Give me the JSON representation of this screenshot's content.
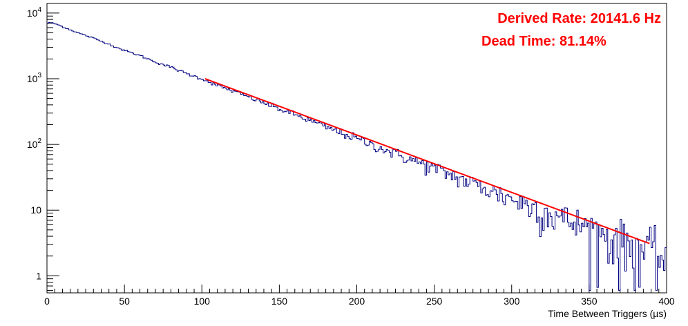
{
  "chart_data": {
    "type": "line",
    "title": "",
    "xlabel": "Time Between Triggers (µs)",
    "ylabel": "",
    "xlim": [
      0,
      400
    ],
    "ylim": [
      0.55,
      14000
    ],
    "y_scale": "log",
    "grid": false,
    "x_ticks": [
      0,
      50,
      100,
      150,
      200,
      250,
      300,
      350,
      400
    ],
    "x_tick_labels": [
      "0",
      "50",
      "100",
      "150",
      "200",
      "250",
      "300",
      "350",
      "400"
    ],
    "y_ticks": [
      {
        "value": 1,
        "base": "1",
        "exp": ""
      },
      {
        "value": 10,
        "base": "10",
        "exp": ""
      },
      {
        "value": 100,
        "base": "10",
        "exp": "2"
      },
      {
        "value": 1000,
        "base": "10",
        "exp": "3"
      },
      {
        "value": 10000,
        "base": "10",
        "exp": "4"
      }
    ],
    "histogram": {
      "name": "",
      "color": "#000080",
      "points": [
        [
          0,
          6900
        ],
        [
          2,
          7200
        ],
        [
          4,
          7000
        ],
        [
          6,
          6800
        ],
        [
          8,
          6500
        ],
        [
          10,
          6200
        ],
        [
          20,
          5000
        ],
        [
          30,
          4150
        ],
        [
          40,
          3350
        ],
        [
          50,
          2700
        ],
        [
          60,
          2250
        ],
        [
          70,
          1800
        ],
        [
          80,
          1500
        ],
        [
          90,
          1200
        ],
        [
          100,
          1000
        ],
        [
          110,
          790
        ],
        [
          120,
          650
        ],
        [
          130,
          530
        ],
        [
          140,
          430
        ],
        [
          150,
          345
        ],
        [
          160,
          285
        ],
        [
          170,
          230
        ],
        [
          180,
          185
        ],
        [
          190,
          150
        ],
        [
          200,
          122
        ],
        [
          210,
          99
        ],
        [
          220,
          80
        ],
        [
          230,
          65
        ],
        [
          240,
          53
        ],
        [
          250,
          43
        ],
        [
          260,
          35
        ],
        [
          270,
          28
        ],
        [
          280,
          23
        ],
        [
          290,
          18.5
        ],
        [
          300,
          15
        ],
        [
          310,
          12.2
        ],
        [
          320,
          9.9
        ],
        [
          330,
          8
        ],
        [
          340,
          6.5
        ],
        [
          350,
          5.3
        ],
        [
          360,
          4.3
        ],
        [
          370,
          3.5
        ],
        [
          380,
          2.8
        ],
        [
          390,
          2.3
        ],
        [
          395,
          2.1
        ],
        [
          400,
          1.9
        ]
      ]
    },
    "fit": {
      "name": "",
      "color": "#ff0000",
      "x_range": [
        102,
        389
      ],
      "y_at_start": 1000,
      "y_at_end": 3.1
    },
    "annotations": [
      {
        "text": "Derived Rate: 20141.6 Hz",
        "color": "#ff0000"
      },
      {
        "text": "Dead Time: 81.14%",
        "color": "#ff0000"
      }
    ]
  }
}
